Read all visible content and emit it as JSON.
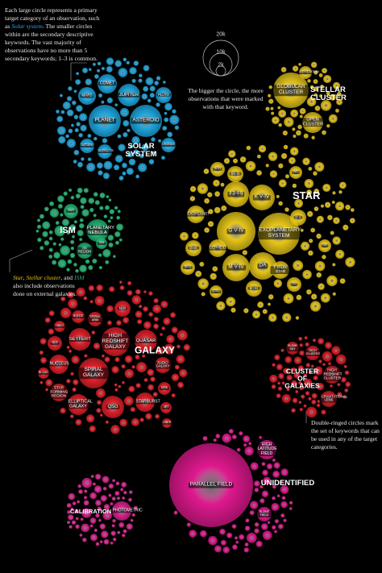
{
  "intro": {
    "before": "Each large circle represents a primary target category of an observation, such as ",
    "highlight": "Solar system",
    "after": ". The smaller circles within are the secondary descriptive keywords. The vast majority of observations have no more than 5 secondary keywords; 1–3 is common."
  },
  "legend": {
    "sizes": [
      "20k",
      "10k",
      "2k"
    ],
    "text": "The bigger the circle, the more observations that were marked with that keyword."
  },
  "external_note": {
    "parts": [
      "Star",
      ", ",
      "Stellar cluster",
      ", and ",
      "ISM",
      " also include observations done on external galaxies."
    ]
  },
  "double_ring_note": "Double-ringed circles mark the set of keywords that can be used in any of the target categories.",
  "groups": [
    {
      "name": "SOLAR SYSTEM",
      "color": "#1fa8e0",
      "keywords": [
        "COMET",
        "MARS",
        "JUPITER",
        "PLUTO",
        "PLANET",
        "ASTEROID",
        "SATURN",
        "SATELLITE",
        "URANUS"
      ]
    },
    {
      "name": "STELLAR CLUSTER",
      "color": "#e3c21a",
      "keywords": [
        "ASSOCIATION",
        "GLOBULAR CLUSTER",
        "OPEN CLUSTER"
      ]
    },
    {
      "name": "STAR",
      "color": "#e6c619",
      "keywords": [
        "SDO",
        "SN IA",
        "F3-F9",
        "K V-IV",
        "O V",
        "EXOPLANET",
        "G V-IV",
        "EXOPLANETARY SYSTEM",
        "DISK",
        "CEPHEID",
        "DB",
        "SN II",
        "M V-IV",
        "DA",
        "T TAURI STAR",
        "SN",
        "G III-I",
        "M III-I",
        "WD"
      ]
    },
    {
      "name": "ISM",
      "color": "#22b573",
      "keywords": [
        "SNR",
        "PLANETARY NEBULA",
        "IGM",
        "HII REGION"
      ]
    },
    {
      "name": "GALAXY",
      "color": "#e0202a",
      "keywords": [
        "NLR",
        "BULGE",
        "SPIRAL ARM",
        "HALO",
        "SEYFERT",
        "HIGH REDSHIFT GALAXY",
        "QUASAR",
        "BLR",
        "NUCLEUS",
        "SPIRAL GALAXY",
        "RADIO GALAXY",
        "BL LAC",
        "STAR FORMING REGION",
        "DISK",
        "ELLIPTICAL GALAXY",
        "QSO",
        "STARBURST",
        "JET",
        "LINER"
      ]
    },
    {
      "name": "CLUSTER OF GALAXIES",
      "color": "#d91c27",
      "keywords": [
        "BLANK SKY",
        "RICH CLUSTER",
        "HIGH REDSHIFT CLUSTER",
        "GRAVITATIONAL LENS"
      ]
    },
    {
      "name": "UNIDENTIFIED",
      "color": "#e0198f",
      "keywords": [
        "PARALLEL FIELD",
        "HIGH LATITUDE FIELD",
        "BLANK FIELD"
      ]
    },
    {
      "name": "CALIBRATION",
      "color": "#d8238f",
      "keywords": [
        "PHOTOMETRIC"
      ]
    }
  ]
}
